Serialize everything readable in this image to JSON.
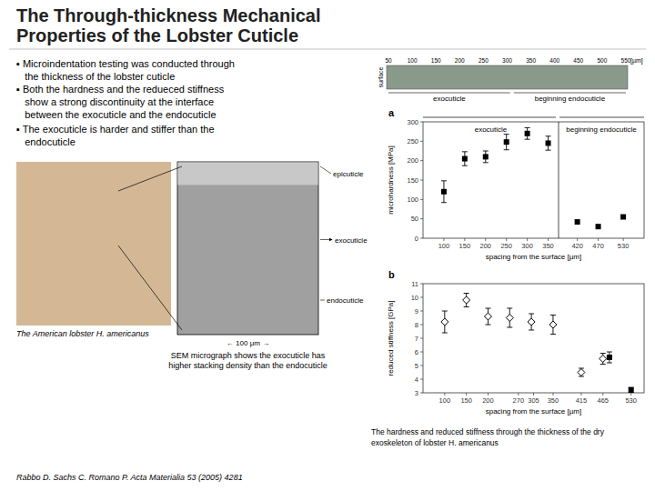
{
  "title": [
    "The Through-thickness Mechanical",
    "Properties of the Lobster Cuticle"
  ],
  "annotations": [
    "▪ Microindentation testing was conducted through\n   the thickness of the lobster cuticle",
    "▪ Both the hardness and the redueced stiffness\n   show a strong discontinuity at the interface\n   between the exocuticle and the endocuticle",
    "▪ The exocuticle is harder and stiffer than the\n   endocuticle",
    "surface",
    "[µm]",
    "exocuticle",
    "beginning endocuticle",
    "epicuticle",
    "exocuticle",
    "endocuticle",
    "← 100 μm →",
    "The American lobster H. americanus",
    "SEM micrograph shows the exocuticle has\nhigher stacking density than the endocuticle",
    "Rabbo D. Sachs C. Romano P. Acta Materialia 53 (2005) 4281",
    "The hardness and reduced stiffness through the thickness of the dry\nexoskeleton of lobster H. americanus"
  ],
  "strip_ticks": [
    50,
    100,
    150,
    200,
    250,
    300,
    350,
    400,
    450,
    500,
    550
  ],
  "chart_data": [
    {
      "type": "scatter",
      "title": "a",
      "xlabel": "spacing from the surface [µm]",
      "ylabel": "microhardness [MPa]",
      "xlim": [
        50,
        580
      ],
      "ylim": [
        0,
        300
      ],
      "xticks": [
        100,
        150,
        200,
        250,
        300,
        350,
        420,
        470,
        530
      ],
      "yticks": [
        0,
        50,
        100,
        150,
        200,
        250,
        300
      ],
      "grid": false,
      "divider": 375,
      "annotations": [
        "exocuticle",
        "beginning endocuticle"
      ],
      "series": [
        {
          "marker": "square",
          "color": "#000000",
          "x": [
            100,
            150,
            200,
            250,
            300,
            350,
            420,
            470,
            530
          ],
          "values": [
            120,
            205,
            210,
            248,
            270,
            245,
            42,
            30,
            55
          ],
          "errors": [
            28,
            18,
            15,
            20,
            15,
            18,
            0,
            0,
            0
          ]
        }
      ]
    },
    {
      "type": "scatter",
      "title": "b",
      "xlabel": "spacing from the surface [µm]",
      "ylabel": "reduced stiffness [GPa]",
      "xlim": [
        50,
        560
      ],
      "ylim": [
        3,
        11
      ],
      "xticks": [
        100,
        150,
        200,
        270,
        305,
        350,
        415,
        465,
        530
      ],
      "yticks": [
        3,
        4,
        5,
        6,
        7,
        8,
        9,
        10,
        11
      ],
      "grid": false,
      "series": [
        {
          "marker": "open-diamond",
          "color": "#000000",
          "x": [
            100,
            150,
            200,
            250,
            300,
            350,
            415,
            465
          ],
          "values": [
            8.2,
            9.8,
            8.6,
            8.5,
            8.2,
            8.0,
            4.5,
            5.5
          ],
          "errors": [
            0.8,
            0.5,
            0.6,
            0.7,
            0.6,
            0.7,
            0.3,
            0.4
          ]
        },
        {
          "marker": "square",
          "color": "#000000",
          "x": [
            480,
            530
          ],
          "values": [
            5.6,
            3.2
          ],
          "errors": [
            0.4,
            0.2
          ]
        }
      ]
    }
  ]
}
